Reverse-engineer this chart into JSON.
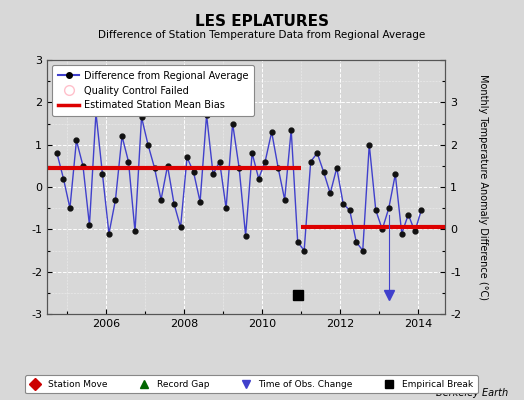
{
  "title": "LES EPLATURES",
  "subtitle": "Difference of Station Temperature Data from Regional Average",
  "ylabel": "Monthly Temperature Anomaly Difference (°C)",
  "xlabel_bottom": "Berkeley Earth",
  "background_color": "#d8d8d8",
  "plot_background": "#d8d8d8",
  "ylim": [
    -3,
    3
  ],
  "xlim_start": 2004.5,
  "xlim_end": 2014.7,
  "xticks": [
    2006,
    2008,
    2010,
    2012,
    2014
  ],
  "yticks": [
    -3,
    -2,
    -1,
    0,
    1,
    2,
    3
  ],
  "segment1_bias": 0.45,
  "segment2_bias": -0.95,
  "break_x": 2011.0,
  "empirical_break_x": 2010.92,
  "empirical_break_y": -2.55,
  "time_obs_change_x": 2013.25,
  "time_obs_change_y": -2.55,
  "main_line_color": "#4040cc",
  "bias_line_color": "#dd0000",
  "data_x": [
    2004.75,
    2004.917,
    2005.083,
    2005.25,
    2005.417,
    2005.583,
    2005.75,
    2005.917,
    2006.083,
    2006.25,
    2006.417,
    2006.583,
    2006.75,
    2006.917,
    2007.083,
    2007.25,
    2007.417,
    2007.583,
    2007.75,
    2007.917,
    2008.083,
    2008.25,
    2008.417,
    2008.583,
    2008.75,
    2008.917,
    2009.083,
    2009.25,
    2009.417,
    2009.583,
    2009.75,
    2009.917,
    2010.083,
    2010.25,
    2010.417,
    2010.583,
    2010.75,
    2010.917,
    2011.083,
    2011.25,
    2011.417,
    2011.583,
    2011.75,
    2011.917,
    2012.083,
    2012.25,
    2012.417,
    2012.583,
    2012.75,
    2012.917,
    2013.083,
    2013.25,
    2013.417,
    2013.583,
    2013.75,
    2013.917,
    2014.083
  ],
  "data_y": [
    0.8,
    0.2,
    -0.5,
    1.1,
    0.5,
    -0.9,
    1.75,
    0.3,
    -1.1,
    -0.3,
    1.2,
    0.6,
    -1.05,
    1.65,
    1.0,
    0.45,
    -0.3,
    0.5,
    -0.4,
    -0.95,
    0.7,
    0.35,
    -0.35,
    1.7,
    0.3,
    0.6,
    -0.5,
    1.5,
    0.45,
    -1.15,
    0.8,
    0.2,
    0.6,
    1.3,
    0.45,
    -0.3,
    1.35,
    -1.3,
    -1.5,
    0.6,
    0.8,
    0.35,
    -0.15,
    0.45,
    -0.4,
    -0.55,
    -1.3,
    -1.5,
    1.0,
    -0.55,
    -1.0,
    -0.5,
    0.3,
    -1.1,
    -0.65,
    -1.05,
    -0.55
  ]
}
